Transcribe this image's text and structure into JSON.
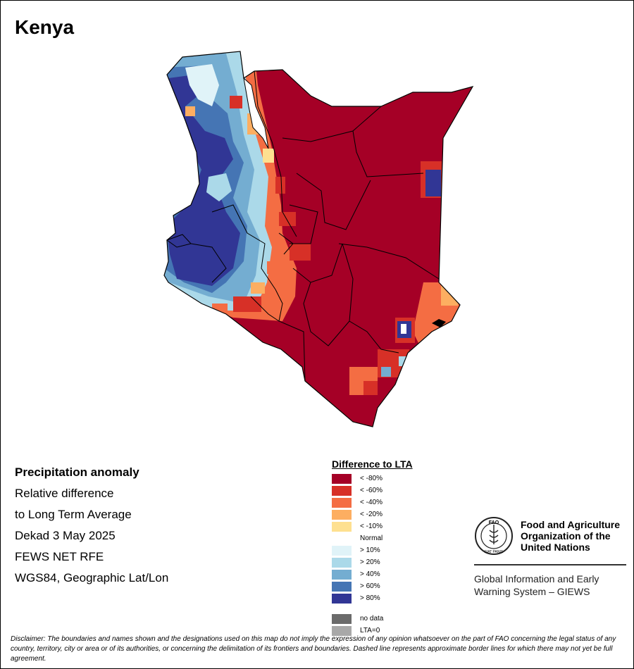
{
  "map": {
    "title": "Kenya"
  },
  "info": {
    "heading": "Precipitation anomaly",
    "line1": "Relative difference",
    "line2": "to Long Term Average",
    "period": "Dekad 3 May 2025",
    "source": "FEWS NET RFE",
    "projection": "WGS84, Geographic Lat/Lon"
  },
  "legend": {
    "title": "Difference to LTA",
    "classes": [
      {
        "label": "< -80%",
        "color": "#a50026"
      },
      {
        "label": "< -60%",
        "color": "#d73027"
      },
      {
        "label": "< -40%",
        "color": "#f46d43"
      },
      {
        "label": "< -20%",
        "color": "#fdae61"
      },
      {
        "label": "< -10%",
        "color": "#fee090"
      },
      {
        "label": "Normal",
        "color": "#ffffff"
      },
      {
        "label": "> 10%",
        "color": "#e0f3f8"
      },
      {
        "label": "> 20%",
        "color": "#abd9e9"
      },
      {
        "label": "> 40%",
        "color": "#74add1"
      },
      {
        "label": "> 60%",
        "color": "#4575b4"
      },
      {
        "label": "> 80%",
        "color": "#313695"
      }
    ],
    "nodata_label": "no data",
    "nodata_color": "#6b6b6b",
    "lta0_label": "LTA=0",
    "lta0_color": "#a8a8a8"
  },
  "fao": {
    "logo_letters": "FAO",
    "logo_motto": "FIAT PANIS",
    "name_line1": "Food and Agriculture",
    "name_line2": "Organization of the",
    "name_line3": "United Nations",
    "system_line1": "Global Information and Early",
    "system_line2": "Warning System – GIEWS"
  },
  "disclaimer": "Disclaimer: The boundaries and names shown and the designations used on this map do not imply the expression of any opinion whatsoever on the part of FAO concerning the legal status of any country, territory, city or area or of its authorities, or concerning the delimitation of its frontiers and boundaries. Dashed line represents approximate border lines for which there may not yet be full agreement."
}
